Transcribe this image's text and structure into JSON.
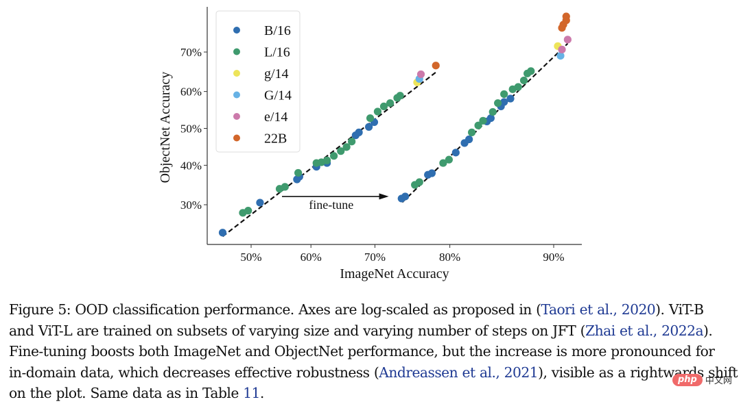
{
  "chart_data": {
    "type": "scatter",
    "title": "",
    "xlabel": "ImageNet Accuracy",
    "ylabel": "ObjectNet Accuracy",
    "xscale": "probit",
    "yscale": "probit",
    "xticks": [
      50,
      60,
      70,
      80,
      90
    ],
    "xtick_labels": [
      "50%",
      "60%",
      "70%",
      "80%",
      "90%"
    ],
    "yticks": [
      30,
      40,
      50,
      60,
      70
    ],
    "ytick_labels": [
      "30%",
      "40%",
      "50%",
      "60%",
      "70%"
    ],
    "xlim": [
      44,
      92.5
    ],
    "ylim": [
      20.5,
      80
    ],
    "grid": false,
    "legend_position": "top-left",
    "legend": [
      {
        "name": "B/16",
        "color": "#2f6eb0"
      },
      {
        "name": "L/16",
        "color": "#3f9a6e"
      },
      {
        "name": "g/14",
        "color": "#ede45a"
      },
      {
        "name": "G/14",
        "color": "#67b2e5"
      },
      {
        "name": "e/14",
        "color": "#cc7aab"
      },
      {
        "name": "22B",
        "color": "#d2662a"
      }
    ],
    "series": [
      {
        "name": "B/16",
        "color": "#2f6eb0",
        "points": [
          [
            45.2,
            23.7
          ],
          [
            51.5,
            30.5
          ],
          [
            57.7,
            36.3
          ],
          [
            58.1,
            37.0
          ],
          [
            60.9,
            39.6
          ],
          [
            62.6,
            40.6
          ],
          [
            67.1,
            48.1
          ],
          [
            67.6,
            48.9
          ],
          [
            69.1,
            50.4
          ],
          [
            69.9,
            51.7
          ],
          [
            73.8,
            31.5
          ],
          [
            74.3,
            32.0
          ],
          [
            77.3,
            37.5
          ],
          [
            77.8,
            37.9
          ],
          [
            80.7,
            43.4
          ],
          [
            81.7,
            46.0
          ],
          [
            82.2,
            47.0
          ],
          [
            84.1,
            51.9
          ],
          [
            84.5,
            52.8
          ],
          [
            85.5,
            56.0
          ],
          [
            85.8,
            57.2
          ],
          [
            86.4,
            58.1
          ]
        ]
      },
      {
        "name": "L/16",
        "color": "#3f9a6e",
        "points": [
          [
            48.6,
            28.1
          ],
          [
            49.5,
            28.6
          ],
          [
            54.8,
            33.9
          ],
          [
            55.7,
            34.4
          ],
          [
            57.9,
            38.0
          ],
          [
            60.9,
            40.6
          ],
          [
            61.7,
            40.8
          ],
          [
            62.6,
            41.3
          ],
          [
            63.7,
            42.5
          ],
          [
            64.8,
            43.8
          ],
          [
            65.7,
            44.9
          ],
          [
            66.5,
            46.4
          ],
          [
            69.3,
            52.8
          ],
          [
            70.4,
            54.6
          ],
          [
            71.3,
            56.0
          ],
          [
            72.2,
            56.9
          ],
          [
            73.2,
            58.3
          ],
          [
            73.6,
            58.9
          ],
          [
            75.6,
            34.9
          ],
          [
            76.2,
            35.6
          ],
          [
            79.2,
            40.6
          ],
          [
            79.9,
            41.5
          ],
          [
            82.5,
            48.9
          ],
          [
            83.2,
            50.8
          ],
          [
            83.7,
            52.1
          ],
          [
            84.7,
            54.5
          ],
          [
            85.2,
            56.9
          ],
          [
            85.8,
            59.3
          ],
          [
            86.6,
            60.6
          ],
          [
            87.1,
            61.2
          ],
          [
            87.6,
            62.9
          ],
          [
            87.9,
            64.7
          ],
          [
            88.2,
            65.3
          ]
        ]
      },
      {
        "name": "g/14",
        "color": "#ede45a",
        "points": [
          [
            75.9,
            62.4
          ],
          [
            90.3,
            71.4
          ]
        ]
      },
      {
        "name": "G/14",
        "color": "#67b2e5",
        "points": [
          [
            76.2,
            63.3
          ],
          [
            90.5,
            69.1
          ]
        ]
      },
      {
        "name": "e/14",
        "color": "#cc7aab",
        "points": [
          [
            76.4,
            64.5
          ],
          [
            90.6,
            70.6
          ],
          [
            91.0,
            72.9
          ]
        ]
      },
      {
        "name": "22B",
        "color": "#d2662a",
        "points": [
          [
            78.3,
            66.7
          ],
          [
            90.6,
            75.5
          ],
          [
            90.7,
            76.2
          ],
          [
            90.9,
            77.1
          ],
          [
            90.9,
            77.9
          ]
        ]
      }
    ],
    "fit_lines": [
      {
        "name": "pre-finetune-fit",
        "style": "dashed",
        "from": [
          45.2,
          22.9
        ],
        "to": [
          78.3,
          65.0
        ]
      },
      {
        "name": "finetuned-fit",
        "style": "dashed",
        "from": [
          73.9,
          30.6
        ],
        "to": [
          91.0,
          72.0
        ]
      }
    ],
    "annotations": [
      {
        "text": "fine-tune",
        "type": "arrow",
        "from_x": 55.2,
        "to_x": 72.0,
        "y": 31.5
      }
    ]
  },
  "caption": {
    "lines": [
      [
        {
          "t": "Figure 5: OOD classification performance.  Axes are log-scaled as proposed in "
        },
        {
          "t": "(",
          "c": 0
        },
        {
          "t": "Taori et al., 2020",
          "c": 1
        },
        {
          "t": ")",
          "c": 0
        },
        {
          "t": ".  ViT-B"
        }
      ],
      [
        {
          "t": "and ViT-L are trained on subsets of varying size and varying number of steps on JFT "
        },
        {
          "t": "(",
          "c": 0
        },
        {
          "t": "Zhai et al., 2022a",
          "c": 1
        },
        {
          "t": ")",
          "c": 0
        },
        {
          "t": "."
        }
      ],
      [
        {
          "t": "Fine-tuning boosts both ImageNet and ObjectNet performance, but the increase is more pronounced for"
        }
      ],
      [
        {
          "t": "in-domain data, which decreases effective robustness "
        },
        {
          "t": "(",
          "c": 0
        },
        {
          "t": "Andreassen et al., 2021",
          "c": 1
        },
        {
          "t": ")",
          "c": 0
        },
        {
          "t": ", visible as a rightwards shift"
        }
      ],
      [
        {
          "t": "on the plot. Same data as in Table "
        },
        {
          "t": "11",
          "c": 1
        },
        {
          "t": "."
        }
      ]
    ]
  },
  "watermark": {
    "badge": "php",
    "text": "中文网"
  }
}
